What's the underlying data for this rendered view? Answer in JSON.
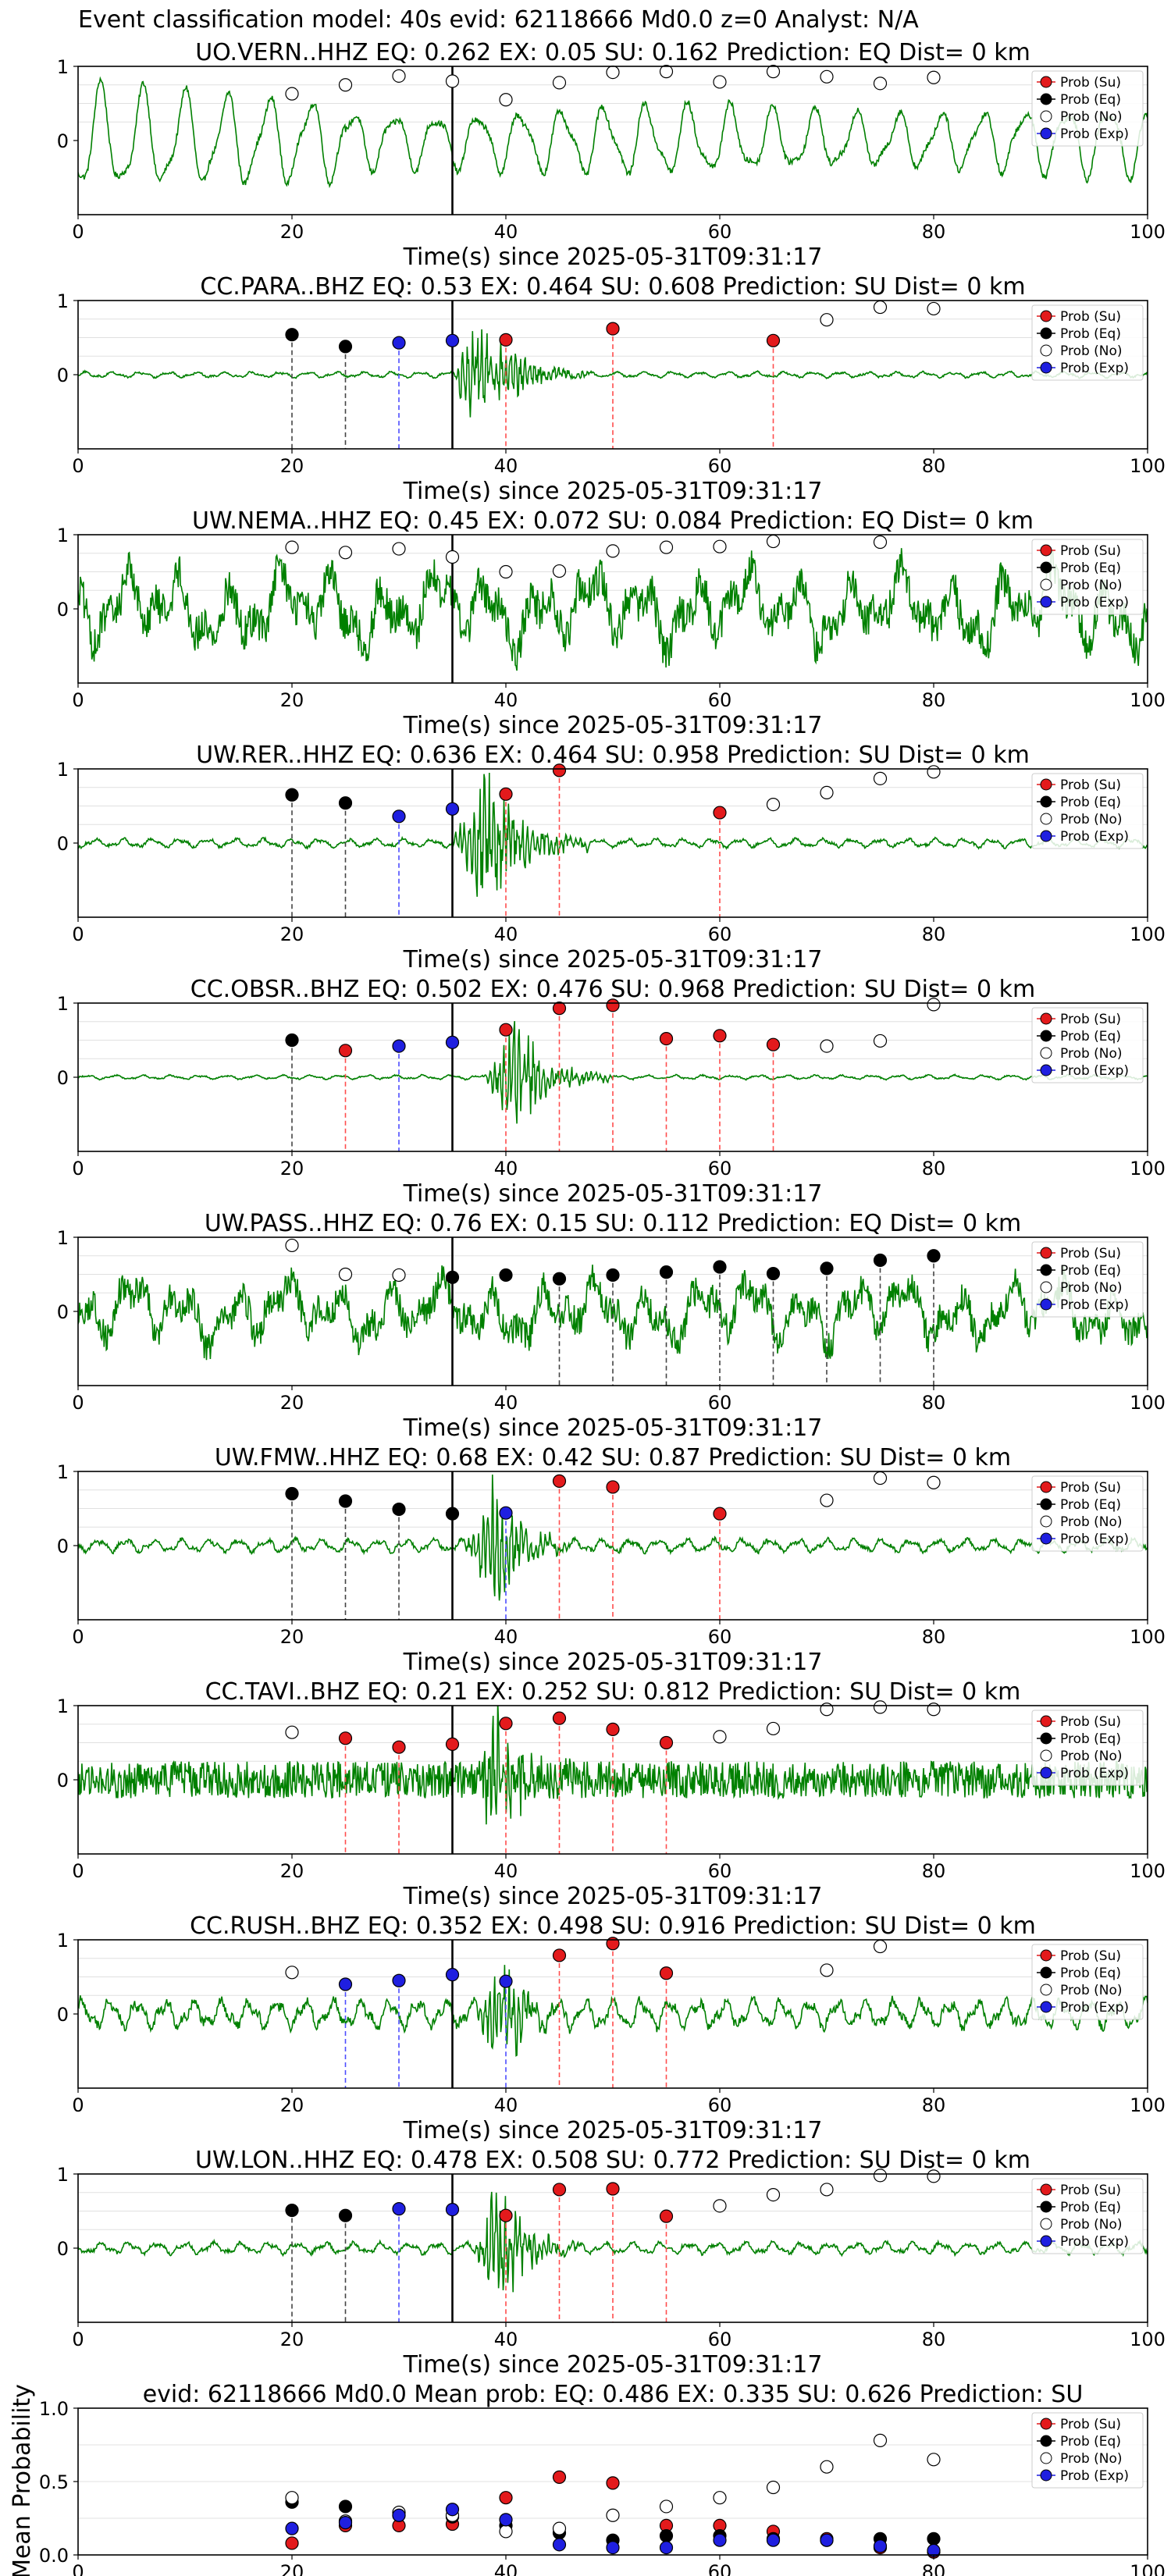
{
  "figure_title": "Event classification model: 40s evid: 62118666 Md0.0 z=0 Analyst: N/A",
  "colors": {
    "waveform": "#008000",
    "su": "#e31a1c",
    "eq": "#000000",
    "no": "#ffffff",
    "exp": "#1f1fe0",
    "line_su": "#ff4d4d",
    "line_eq": "#444444",
    "line_exp": "#4d4dff",
    "grid": "#e0e0e0"
  },
  "legend_labels": [
    "Prob (Su)",
    "Prob (Eq)",
    "Prob (No)",
    "Prob (Exp)"
  ],
  "chart_data": [
    {
      "type": "line",
      "title": "UO.VERN..HHZ   EQ: 0.262  EX: 0.05  SU: 0.162   Prediction: EQ    Dist= 0 km",
      "xlabel": "Time(s) since 2025-05-31T09:31:17",
      "xlim": [
        0,
        100
      ],
      "ylim": [
        -1,
        1
      ],
      "xticks": [
        0,
        20,
        40,
        60,
        80,
        100
      ],
      "yticks": [
        0,
        1
      ],
      "origin_time": 35,
      "waveform": {
        "style": "lowfreq",
        "amplitude": 0.55
      },
      "windows": [
        20,
        25,
        30,
        35,
        40,
        45,
        50,
        55,
        60,
        65,
        70,
        75,
        80
      ],
      "predictions": [
        "no",
        "no",
        "no",
        "no",
        "no",
        "no",
        "no",
        "no",
        "no",
        "no",
        "no",
        "no",
        "no"
      ],
      "probabilities": [
        0.63,
        0.75,
        0.87,
        0.8,
        0.55,
        0.78,
        0.92,
        0.93,
        0.79,
        0.93,
        0.86,
        0.77,
        0.85
      ],
      "marked_lines": []
    },
    {
      "type": "line",
      "title": "CC.PARA..BHZ   EQ: 0.53  EX: 0.464  SU: 0.608   Prediction: SU    Dist= 0 km",
      "xlabel": "Time(s) since 2025-05-31T09:31:17",
      "xlim": [
        0,
        100
      ],
      "ylim": [
        -1,
        1
      ],
      "xticks": [
        0,
        20,
        40,
        60,
        80,
        100
      ],
      "yticks": [
        0,
        1
      ],
      "origin_time": 35,
      "waveform": {
        "style": "burst",
        "amplitude": 0.04,
        "burst_start": 35,
        "burst_peak": 37,
        "burst_end": 48,
        "burst_amp": 0.75
      },
      "windows": [
        20,
        25,
        30,
        35,
        40,
        50,
        65,
        70,
        75,
        80
      ],
      "predictions": [
        "eq",
        "eq",
        "exp",
        "exp",
        "su",
        "su",
        "su",
        "no",
        "no",
        "no"
      ],
      "probabilities": [
        0.54,
        0.38,
        0.43,
        0.46,
        0.47,
        0.62,
        0.46,
        0.74,
        0.91,
        0.89
      ],
      "marked_lines": [
        20,
        25,
        30,
        40,
        50,
        65
      ]
    },
    {
      "type": "line",
      "title": "UW.NEMA..HHZ   EQ: 0.45  EX: 0.072  SU: 0.084   Prediction: EQ    Dist= 0 km",
      "xlabel": "Time(s) since 2025-05-31T09:31:17",
      "xlim": [
        0,
        100
      ],
      "ylim": [
        -1,
        1
      ],
      "xticks": [
        0,
        20,
        40,
        60,
        80,
        100
      ],
      "yticks": [
        0,
        1
      ],
      "origin_time": 35,
      "waveform": {
        "style": "noisy",
        "amplitude": 0.55
      },
      "windows": [
        20,
        25,
        30,
        35,
        40,
        45,
        50,
        55,
        60,
        65,
        75
      ],
      "predictions": [
        "no",
        "no",
        "no",
        "no",
        "no",
        "no",
        "no",
        "no",
        "no",
        "no",
        "no"
      ],
      "probabilities": [
        0.83,
        0.76,
        0.81,
        0.7,
        0.5,
        0.51,
        0.78,
        0.83,
        0.84,
        0.91,
        0.9
      ],
      "marked_lines": []
    },
    {
      "type": "line",
      "title": "UW.RER..HHZ   EQ: 0.636  EX: 0.464  SU: 0.958   Prediction: SU    Dist= 0 km",
      "xlabel": "Time(s) since 2025-05-31T09:31:17",
      "xlim": [
        0,
        100
      ],
      "ylim": [
        -1,
        1
      ],
      "xticks": [
        0,
        20,
        40,
        60,
        80,
        100
      ],
      "yticks": [
        0,
        1
      ],
      "origin_time": 35,
      "waveform": {
        "style": "burst",
        "amplitude": 0.06,
        "burst_start": 35,
        "burst_peak": 38,
        "burst_end": 48,
        "burst_amp": 0.95
      },
      "windows": [
        20,
        25,
        30,
        35,
        40,
        45,
        60,
        65,
        70,
        75,
        80
      ],
      "predictions": [
        "eq",
        "eq",
        "exp",
        "exp",
        "su",
        "su",
        "su",
        "no",
        "no",
        "no",
        "no"
      ],
      "probabilities": [
        0.65,
        0.54,
        0.36,
        0.46,
        0.66,
        0.98,
        0.41,
        0.52,
        0.68,
        0.87,
        0.96
      ],
      "marked_lines": [
        20,
        25,
        30,
        40,
        45,
        60
      ]
    },
    {
      "type": "line",
      "title": "CC.OBSR..BHZ   EQ: 0.502  EX: 0.476  SU: 0.968   Prediction: SU    Dist= 0 km",
      "xlabel": "Time(s) since 2025-05-31T09:31:17",
      "xlim": [
        0,
        100
      ],
      "ylim": [
        -1,
        1
      ],
      "xticks": [
        0,
        20,
        40,
        60,
        80,
        100
      ],
      "yticks": [
        0,
        1
      ],
      "origin_time": 35,
      "waveform": {
        "style": "burst",
        "amplitude": 0.03,
        "burst_start": 38,
        "burst_peak": 41,
        "burst_end": 50,
        "burst_amp": 0.75
      },
      "windows": [
        20,
        25,
        30,
        35,
        40,
        45,
        50,
        55,
        60,
        65,
        70,
        75,
        80
      ],
      "predictions": [
        "eq",
        "su",
        "exp",
        "exp",
        "su",
        "su",
        "su",
        "su",
        "su",
        "su",
        "no",
        "no",
        "no"
      ],
      "probabilities": [
        0.5,
        0.36,
        0.42,
        0.47,
        0.64,
        0.93,
        0.97,
        0.52,
        0.56,
        0.44,
        0.42,
        0.49,
        0.98
      ],
      "marked_lines": [
        20,
        25,
        30,
        40,
        45,
        50,
        55,
        60,
        65
      ]
    },
    {
      "type": "line",
      "title": "UW.PASS..HHZ   EQ: 0.76  EX: 0.15  SU: 0.112   Prediction: EQ    Dist= 0 km",
      "xlabel": "Time(s) since 2025-05-31T09:31:17",
      "xlim": [
        0,
        100
      ],
      "ylim": [
        -1,
        1
      ],
      "xticks": [
        0,
        20,
        40,
        60,
        80,
        100
      ],
      "yticks": [
        0,
        1
      ],
      "origin_time": 35,
      "waveform": {
        "style": "noisy",
        "amplitude": 0.45
      },
      "windows": [
        20,
        25,
        30,
        35,
        40,
        45,
        50,
        55,
        60,
        65,
        70,
        75,
        80
      ],
      "predictions": [
        "no",
        "no",
        "no",
        "eq",
        "eq",
        "eq",
        "eq",
        "eq",
        "eq",
        "eq",
        "eq",
        "eq",
        "eq"
      ],
      "probabilities": [
        0.89,
        0.5,
        0.49,
        0.46,
        0.49,
        0.44,
        0.49,
        0.53,
        0.6,
        0.51,
        0.58,
        0.69,
        0.75
      ],
      "marked_lines": [
        45,
        50,
        55,
        60,
        65,
        70,
        75,
        80
      ]
    },
    {
      "type": "line",
      "title": "UW.FMW..HHZ   EQ: 0.68  EX: 0.42  SU: 0.87   Prediction: SU    Dist= 0 km",
      "xlabel": "Time(s) since 2025-05-31T09:31:17",
      "xlim": [
        0,
        100
      ],
      "ylim": [
        -1,
        1
      ],
      "xticks": [
        0,
        20,
        40,
        60,
        80,
        100
      ],
      "yticks": [
        0,
        1
      ],
      "origin_time": 35,
      "waveform": {
        "style": "burst",
        "amplitude": 0.09,
        "burst_start": 36,
        "burst_peak": 39,
        "burst_end": 46,
        "burst_amp": 0.9
      },
      "windows": [
        20,
        25,
        30,
        35,
        40,
        45,
        50,
        60,
        70,
        75,
        80
      ],
      "predictions": [
        "eq",
        "eq",
        "eq",
        "eq",
        "exp",
        "su",
        "su",
        "su",
        "no",
        "no",
        "no"
      ],
      "probabilities": [
        0.7,
        0.6,
        0.49,
        0.43,
        0.44,
        0.87,
        0.79,
        0.43,
        0.61,
        0.91,
        0.85
      ],
      "marked_lines": [
        20,
        25,
        30,
        40,
        45,
        50,
        60
      ]
    },
    {
      "type": "line",
      "title": "CC.TAVI..BHZ   EQ: 0.21  EX: 0.252  SU: 0.812   Prediction: SU    Dist= 0 km",
      "xlabel": "Time(s) since 2025-05-31T09:31:17",
      "xlim": [
        0,
        100
      ],
      "ylim": [
        -1,
        1
      ],
      "xticks": [
        0,
        20,
        40,
        60,
        80,
        100
      ],
      "yticks": [
        0,
        1
      ],
      "origin_time": 35,
      "waveform": {
        "style": "hf",
        "amplitude": 0.25,
        "burst_start": 37,
        "burst_peak": 39,
        "burst_end": 46,
        "burst_amp": 0.95
      },
      "windows": [
        20,
        25,
        30,
        35,
        40,
        45,
        50,
        55,
        60,
        65,
        70,
        75,
        80
      ],
      "predictions": [
        "no",
        "su",
        "su",
        "su",
        "su",
        "su",
        "su",
        "su",
        "no",
        "no",
        "no",
        "no",
        "no"
      ],
      "probabilities": [
        0.64,
        0.56,
        0.44,
        0.48,
        0.76,
        0.83,
        0.68,
        0.5,
        0.58,
        0.69,
        0.95,
        0.98,
        0.95
      ],
      "marked_lines": [
        25,
        30,
        40,
        45,
        50,
        55
      ]
    },
    {
      "type": "line",
      "title": "CC.RUSH..BHZ   EQ: 0.352  EX: 0.498  SU: 0.916   Prediction: SU    Dist= 0 km",
      "xlabel": "Time(s) since 2025-05-31T09:31:17",
      "xlim": [
        0,
        100
      ],
      "ylim": [
        -1,
        1
      ],
      "xticks": [
        0,
        20,
        40,
        60,
        80,
        100
      ],
      "yticks": [
        0,
        1
      ],
      "origin_time": 35,
      "waveform": {
        "style": "burst",
        "amplitude": 0.2,
        "burst_start": 37,
        "burst_peak": 40,
        "burst_end": 46,
        "burst_amp": 0.7
      },
      "windows": [
        20,
        25,
        30,
        35,
        40,
        45,
        50,
        55,
        70,
        75
      ],
      "predictions": [
        "no",
        "exp",
        "exp",
        "exp",
        "exp",
        "su",
        "su",
        "su",
        "no",
        "no"
      ],
      "probabilities": [
        0.56,
        0.4,
        0.45,
        0.53,
        0.44,
        0.79,
        0.95,
        0.55,
        0.59,
        0.91
      ],
      "marked_lines": [
        25,
        30,
        40,
        45,
        50,
        55
      ]
    },
    {
      "type": "line",
      "title": "UW.LON..HHZ   EQ: 0.478  EX: 0.508  SU: 0.772   Prediction: SU    Dist= 0 km",
      "xlabel": "Time(s) since 2025-05-31T09:31:17",
      "xlim": [
        0,
        100
      ],
      "ylim": [
        -1,
        1
      ],
      "xticks": [
        0,
        20,
        40,
        60,
        80,
        100
      ],
      "yticks": [
        0,
        1
      ],
      "origin_time": 35,
      "waveform": {
        "style": "burst",
        "amplitude": 0.08,
        "burst_start": 37,
        "burst_peak": 39,
        "burst_end": 47,
        "burst_amp": 0.9
      },
      "windows": [
        20,
        25,
        30,
        35,
        40,
        45,
        50,
        55,
        60,
        65,
        70,
        75,
        80
      ],
      "predictions": [
        "eq",
        "eq",
        "exp",
        "exp",
        "su",
        "su",
        "su",
        "su",
        "no",
        "no",
        "no",
        "no",
        "no"
      ],
      "probabilities": [
        0.51,
        0.44,
        0.53,
        0.52,
        0.44,
        0.79,
        0.8,
        0.43,
        0.57,
        0.72,
        0.79,
        0.98,
        0.97
      ],
      "marked_lines": [
        20,
        25,
        30,
        40,
        45,
        50,
        55
      ]
    },
    {
      "type": "scatter",
      "title": "evid: 62118666  Md0.0   Mean prob:   EQ: 0.486  EX: 0.335  SU: 0.626   Prediction: SU",
      "ylabel": "Mean Probability",
      "xlim": [
        0,
        100
      ],
      "ylim": [
        0,
        1
      ],
      "xticks": [
        0,
        20,
        40,
        60,
        80,
        100
      ],
      "yticks": [
        0.0,
        0.5,
        1.0
      ],
      "x": [
        20,
        25,
        30,
        35,
        40,
        45,
        50,
        55,
        60,
        65,
        70,
        75,
        80
      ],
      "series": [
        {
          "name": "Prob (Su)",
          "key": "su",
          "values": [
            0.08,
            0.2,
            0.2,
            0.21,
            0.39,
            0.53,
            0.49,
            0.2,
            0.2,
            0.16,
            0.11,
            0.05,
            0.02
          ]
        },
        {
          "name": "Prob (Eq)",
          "key": "eq",
          "values": [
            0.36,
            0.33,
            0.27,
            0.26,
            0.2,
            0.15,
            0.1,
            0.13,
            0.13,
            0.11,
            0.1,
            0.11,
            0.11
          ]
        },
        {
          "name": "Prob (No)",
          "key": "no",
          "values": [
            0.39,
            0.23,
            0.29,
            0.27,
            0.16,
            0.18,
            0.27,
            0.33,
            0.39,
            0.46,
            0.6,
            0.78,
            0.65
          ]
        },
        {
          "name": "Prob (Exp)",
          "key": "exp",
          "values": [
            0.18,
            0.22,
            0.27,
            0.31,
            0.24,
            0.07,
            0.05,
            0.05,
            0.1,
            0.1,
            0.1,
            0.06,
            0.03
          ]
        }
      ]
    }
  ]
}
